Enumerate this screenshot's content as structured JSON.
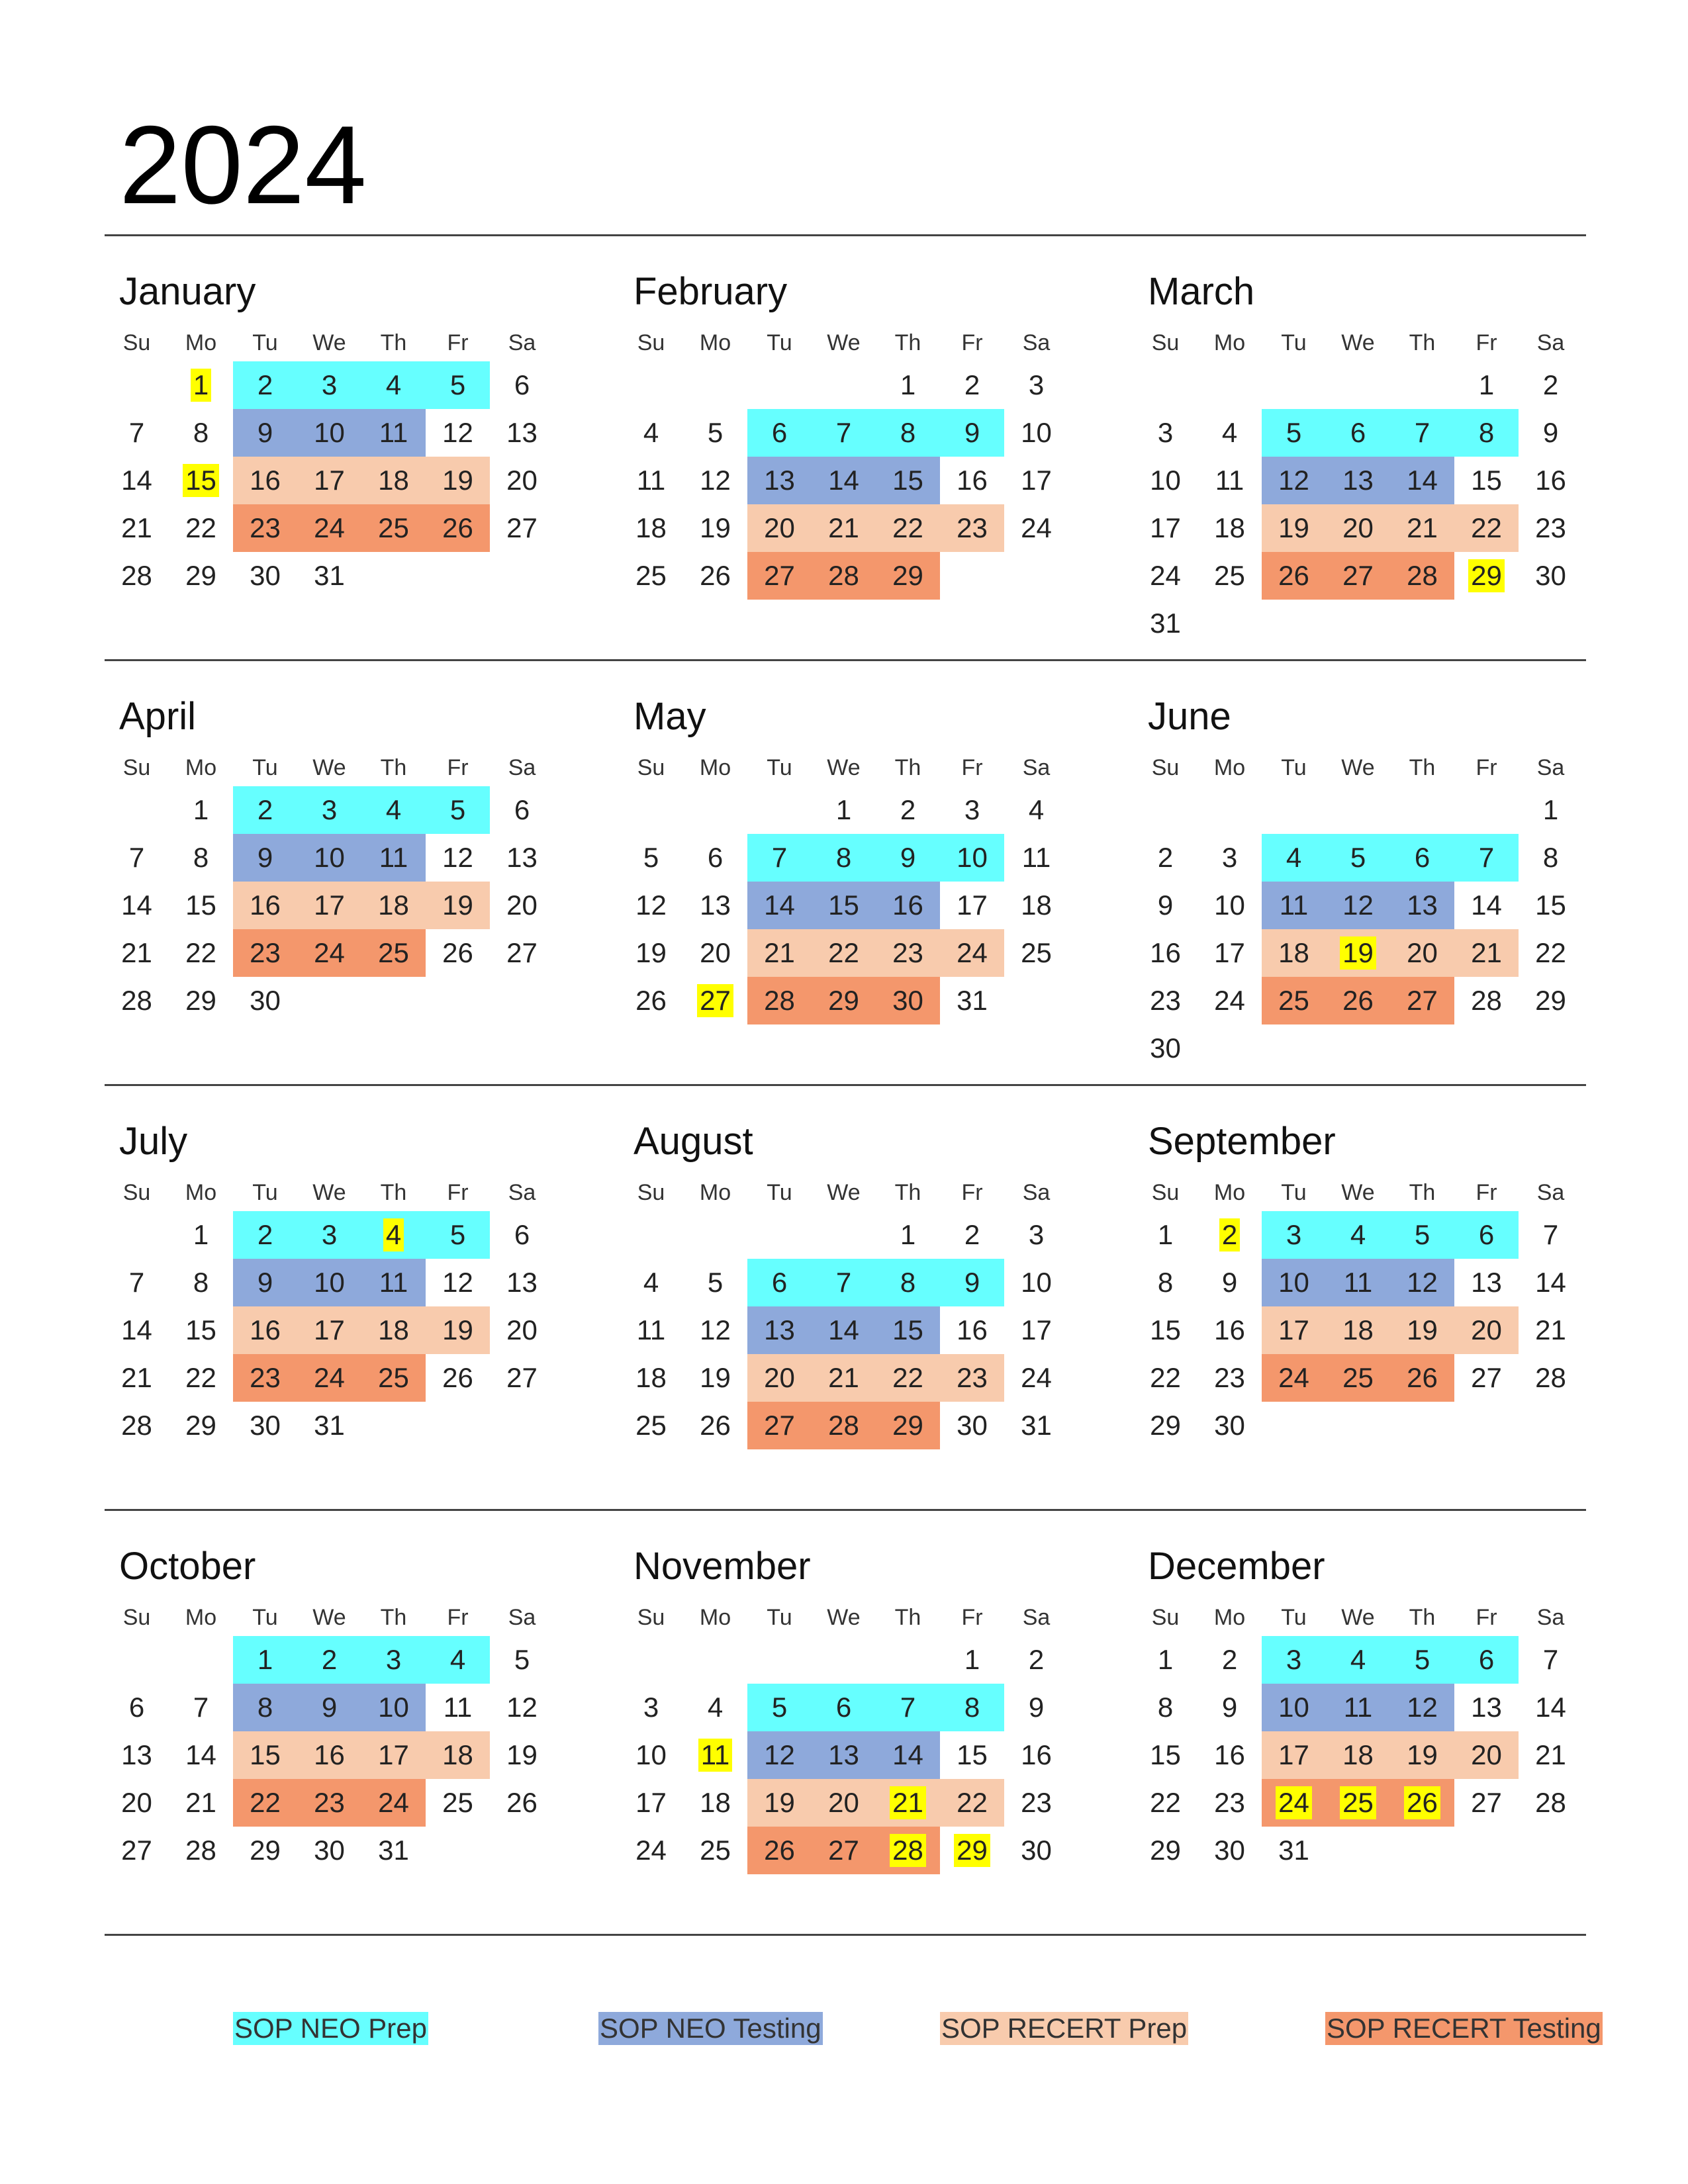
{
  "title": "2024",
  "weekdays": [
    "Su",
    "Mo",
    "Tu",
    "We",
    "Th",
    "Fr",
    "Sa"
  ],
  "colors": {
    "p1": "#66ffff",
    "p2": "#8ea9db",
    "p3": "#f8cbad",
    "p4": "#f4976c",
    "highlight": "#ffff00"
  },
  "months": [
    {
      "name": "January",
      "start": 1,
      "days": 31,
      "phases": {
        "p1": [
          2,
          3,
          4,
          5
        ],
        "p2": [
          9,
          10,
          11
        ],
        "p3": [
          16,
          17,
          18,
          19
        ],
        "p4": [
          23,
          24,
          25,
          26
        ]
      },
      "highlights": [
        1,
        15
      ]
    },
    {
      "name": "February",
      "start": 4,
      "days": 29,
      "phases": {
        "p1": [
          6,
          7,
          8,
          9
        ],
        "p2": [
          13,
          14,
          15
        ],
        "p3": [
          20,
          21,
          22,
          23
        ],
        "p4": [
          27,
          28,
          29
        ]
      },
      "highlights": []
    },
    {
      "name": "March",
      "start": 5,
      "days": 31,
      "phases": {
        "p1": [
          5,
          6,
          7,
          8
        ],
        "p2": [
          12,
          13,
          14
        ],
        "p3": [
          19,
          20,
          21,
          22
        ],
        "p4": [
          26,
          27,
          28
        ]
      },
      "highlights": [
        29
      ]
    },
    {
      "name": "April",
      "start": 1,
      "days": 30,
      "phases": {
        "p1": [
          2,
          3,
          4,
          5
        ],
        "p2": [
          9,
          10,
          11
        ],
        "p3": [
          16,
          17,
          18,
          19
        ],
        "p4": [
          23,
          24,
          25
        ]
      },
      "highlights": []
    },
    {
      "name": "May",
      "start": 3,
      "days": 31,
      "phases": {
        "p1": [
          7,
          8,
          9,
          10
        ],
        "p2": [
          14,
          15,
          16
        ],
        "p3": [
          21,
          22,
          23,
          24
        ],
        "p4": [
          28,
          29,
          30
        ]
      },
      "highlights": [
        27
      ]
    },
    {
      "name": "June",
      "start": 6,
      "days": 30,
      "phases": {
        "p1": [
          4,
          5,
          6,
          7
        ],
        "p2": [
          11,
          12,
          13
        ],
        "p3": [
          18,
          19,
          20,
          21
        ],
        "p4": [
          25,
          26,
          27
        ]
      },
      "highlights": [
        19
      ]
    },
    {
      "name": "July",
      "start": 1,
      "days": 31,
      "phases": {
        "p1": [
          2,
          3,
          4,
          5
        ],
        "p2": [
          9,
          10,
          11
        ],
        "p3": [
          16,
          17,
          18,
          19
        ],
        "p4": [
          23,
          24,
          25
        ]
      },
      "highlights": [
        4
      ]
    },
    {
      "name": "August",
      "start": 4,
      "days": 31,
      "phases": {
        "p1": [
          6,
          7,
          8,
          9
        ],
        "p2": [
          13,
          14,
          15
        ],
        "p3": [
          20,
          21,
          22,
          23
        ],
        "p4": [
          27,
          28,
          29
        ]
      },
      "highlights": []
    },
    {
      "name": "September",
      "start": 0,
      "days": 30,
      "phases": {
        "p1": [
          3,
          4,
          5,
          6
        ],
        "p2": [
          10,
          11,
          12
        ],
        "p3": [
          17,
          18,
          19,
          20
        ],
        "p4": [
          24,
          25,
          26
        ]
      },
      "highlights": [
        2
      ]
    },
    {
      "name": "October",
      "start": 2,
      "days": 31,
      "phases": {
        "p1": [
          1,
          2,
          3,
          4
        ],
        "p2": [
          8,
          9,
          10
        ],
        "p3": [
          15,
          16,
          17,
          18
        ],
        "p4": [
          22,
          23,
          24
        ]
      },
      "highlights": []
    },
    {
      "name": "November",
      "start": 5,
      "days": 30,
      "phases": {
        "p1": [
          5,
          6,
          7,
          8
        ],
        "p2": [
          12,
          13,
          14
        ],
        "p3": [
          19,
          20,
          21,
          22
        ],
        "p4": [
          26,
          27,
          28
        ]
      },
      "highlights": [
        11,
        21,
        28,
        29
      ]
    },
    {
      "name": "December",
      "start": 0,
      "days": 31,
      "phases": {
        "p1": [
          3,
          4,
          5,
          6
        ],
        "p2": [
          10,
          11,
          12
        ],
        "p3": [
          17,
          18,
          19,
          20
        ],
        "p4": [
          24,
          25,
          26
        ]
      },
      "highlights": [
        24,
        25,
        26
      ]
    }
  ],
  "legend": [
    {
      "label": "SOP NEO Prep",
      "color": "#66ffff"
    },
    {
      "label": "SOP NEO Testing",
      "color": "#8ea9db"
    },
    {
      "label": "SOP RECERT Prep",
      "color": "#f8cbad"
    },
    {
      "label": "SOP RECERT Testing",
      "color": "#f4976c"
    }
  ]
}
